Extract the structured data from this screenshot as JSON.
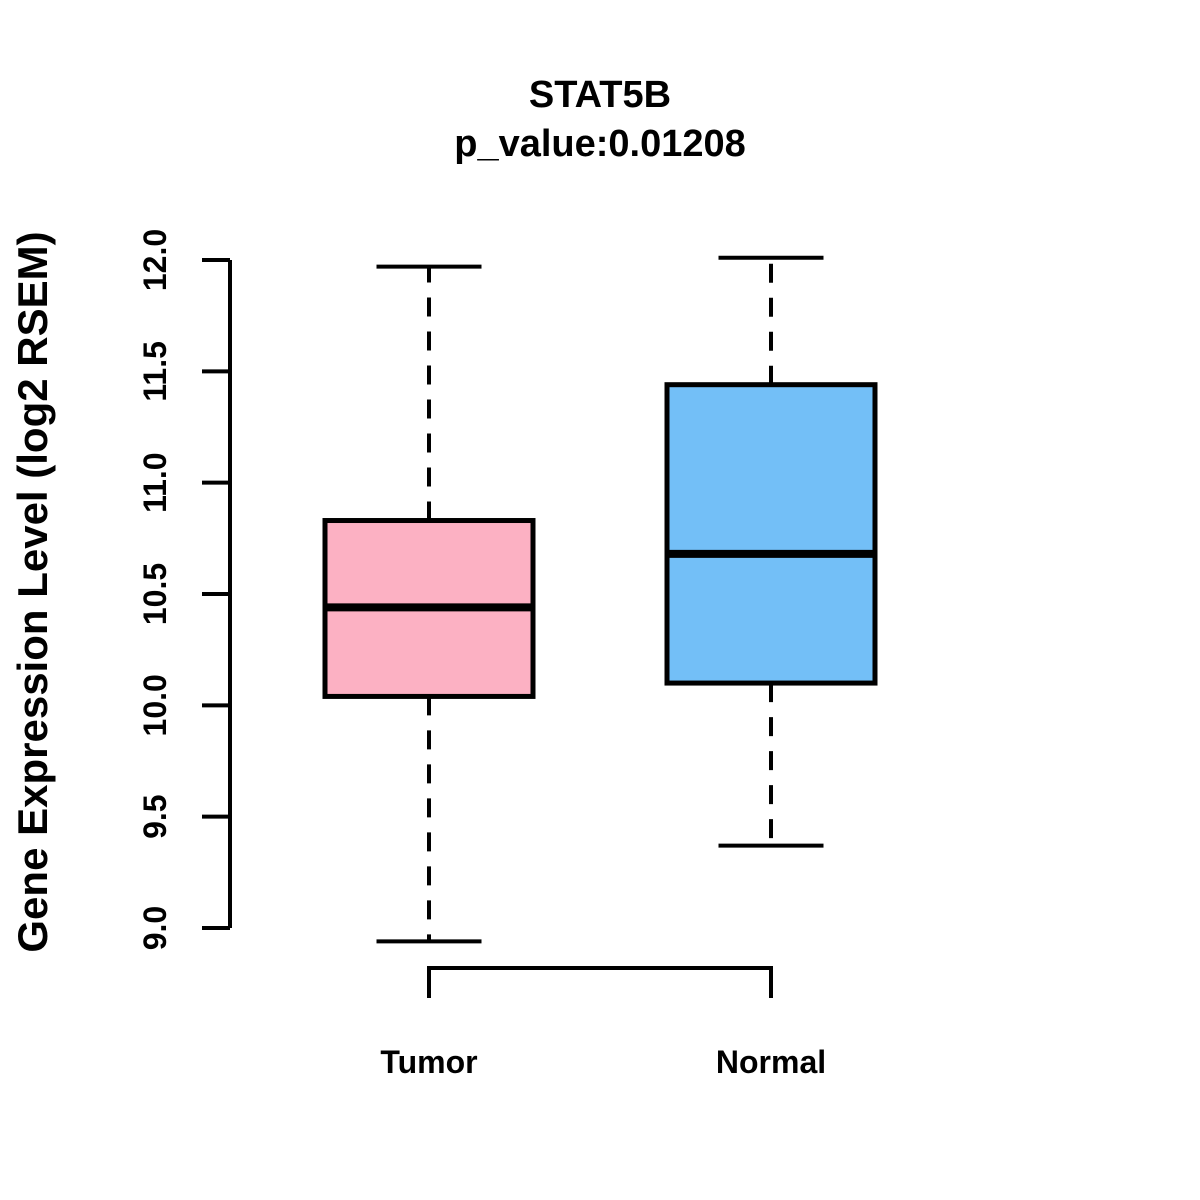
{
  "chart_data": {
    "type": "boxplot",
    "title": "STAT5B",
    "subtitle": "p_value:0.01208",
    "ylabel": "Gene Expression Level (log2 RSEM)",
    "xlabel": "",
    "categories": [
      "Tumor",
      "Normal"
    ],
    "ytick_labels": [
      "9.0",
      "9.5",
      "10.0",
      "10.5",
      "11.0",
      "11.5",
      "12.0"
    ],
    "ylim": [
      9.0,
      12.0
    ],
    "grid": false,
    "legend": false,
    "series": [
      {
        "name": "Tumor",
        "color": "#FCB1C3",
        "whisker_low": 8.94,
        "q1": 10.04,
        "median": 10.44,
        "q3": 10.83,
        "whisker_high": 11.97
      },
      {
        "name": "Normal",
        "color": "#73BFF7",
        "whisker_low": 9.37,
        "q1": 10.1,
        "median": 10.68,
        "q3": 11.44,
        "whisker_high": 12.01
      }
    ],
    "colors": {
      "stroke": "#000000",
      "tumor_fill": "#FCB1C3",
      "normal_fill": "#73BFF7"
    }
  }
}
